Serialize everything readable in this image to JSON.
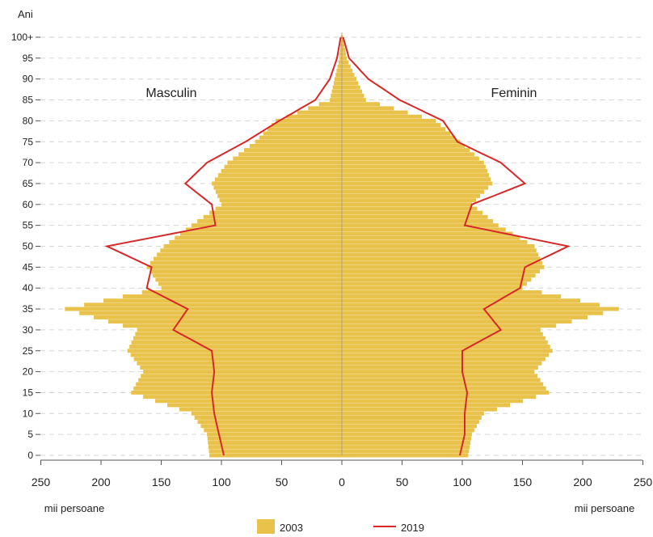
{
  "chart_data": {
    "type": "bar",
    "subtype": "population-pyramid",
    "y_axis_title": "Ani",
    "x_unit_label_left": "mii persoane",
    "x_unit_label_right": "mii persoane",
    "left_label": "Masculin",
    "right_label": "Feminin",
    "y_ticks": [
      "0",
      "5",
      "10",
      "15",
      "20",
      "25",
      "30",
      "35",
      "40",
      "45",
      "50",
      "55",
      "60",
      "65",
      "70",
      "75",
      "80",
      "85",
      "90",
      "95",
      "100+"
    ],
    "x_ticks": [
      "250",
      "200",
      "150",
      "100",
      "50",
      "0",
      "50",
      "100",
      "150",
      "200",
      "250"
    ],
    "xlim": [
      -250,
      250
    ],
    "ylim": [
      0,
      100
    ],
    "grid": "horizontal-dashed",
    "legend": [
      {
        "label": "2003",
        "color": "#E8C24A",
        "kind": "bar"
      },
      {
        "label": "2019",
        "color": "#D62828",
        "kind": "line"
      }
    ],
    "series": [
      {
        "name": "2003",
        "kind": "bars",
        "color": "#E8C24A",
        "age": [
          0,
          5,
          10,
          15,
          20,
          25,
          30,
          35,
          40,
          45,
          50,
          55,
          60,
          65,
          70,
          75,
          80,
          85,
          90,
          95,
          100
        ],
        "male": [
          110,
          112,
          125,
          175,
          165,
          178,
          170,
          230,
          150,
          162,
          148,
          125,
          100,
          108,
          95,
          72,
          55,
          10,
          6,
          2,
          1
        ],
        "female": [
          105,
          108,
          118,
          172,
          160,
          175,
          165,
          230,
          150,
          168,
          160,
          130,
          108,
          125,
          118,
          98,
          78,
          20,
          12,
          4,
          1
        ]
      },
      {
        "name": "2019",
        "kind": "line",
        "color": "#D62828",
        "age": [
          0,
          5,
          10,
          15,
          20,
          25,
          30,
          35,
          40,
          45,
          50,
          55,
          60,
          65,
          70,
          75,
          80,
          85,
          90,
          95,
          100
        ],
        "male": [
          98,
          102,
          106,
          108,
          106,
          108,
          140,
          128,
          162,
          158,
          195,
          105,
          108,
          130,
          112,
          80,
          52,
          22,
          10,
          4,
          1
        ],
        "female": [
          98,
          102,
          102,
          104,
          100,
          100,
          132,
          118,
          148,
          152,
          188,
          102,
          108,
          152,
          132,
          96,
          84,
          48,
          22,
          6,
          1
        ]
      }
    ]
  }
}
